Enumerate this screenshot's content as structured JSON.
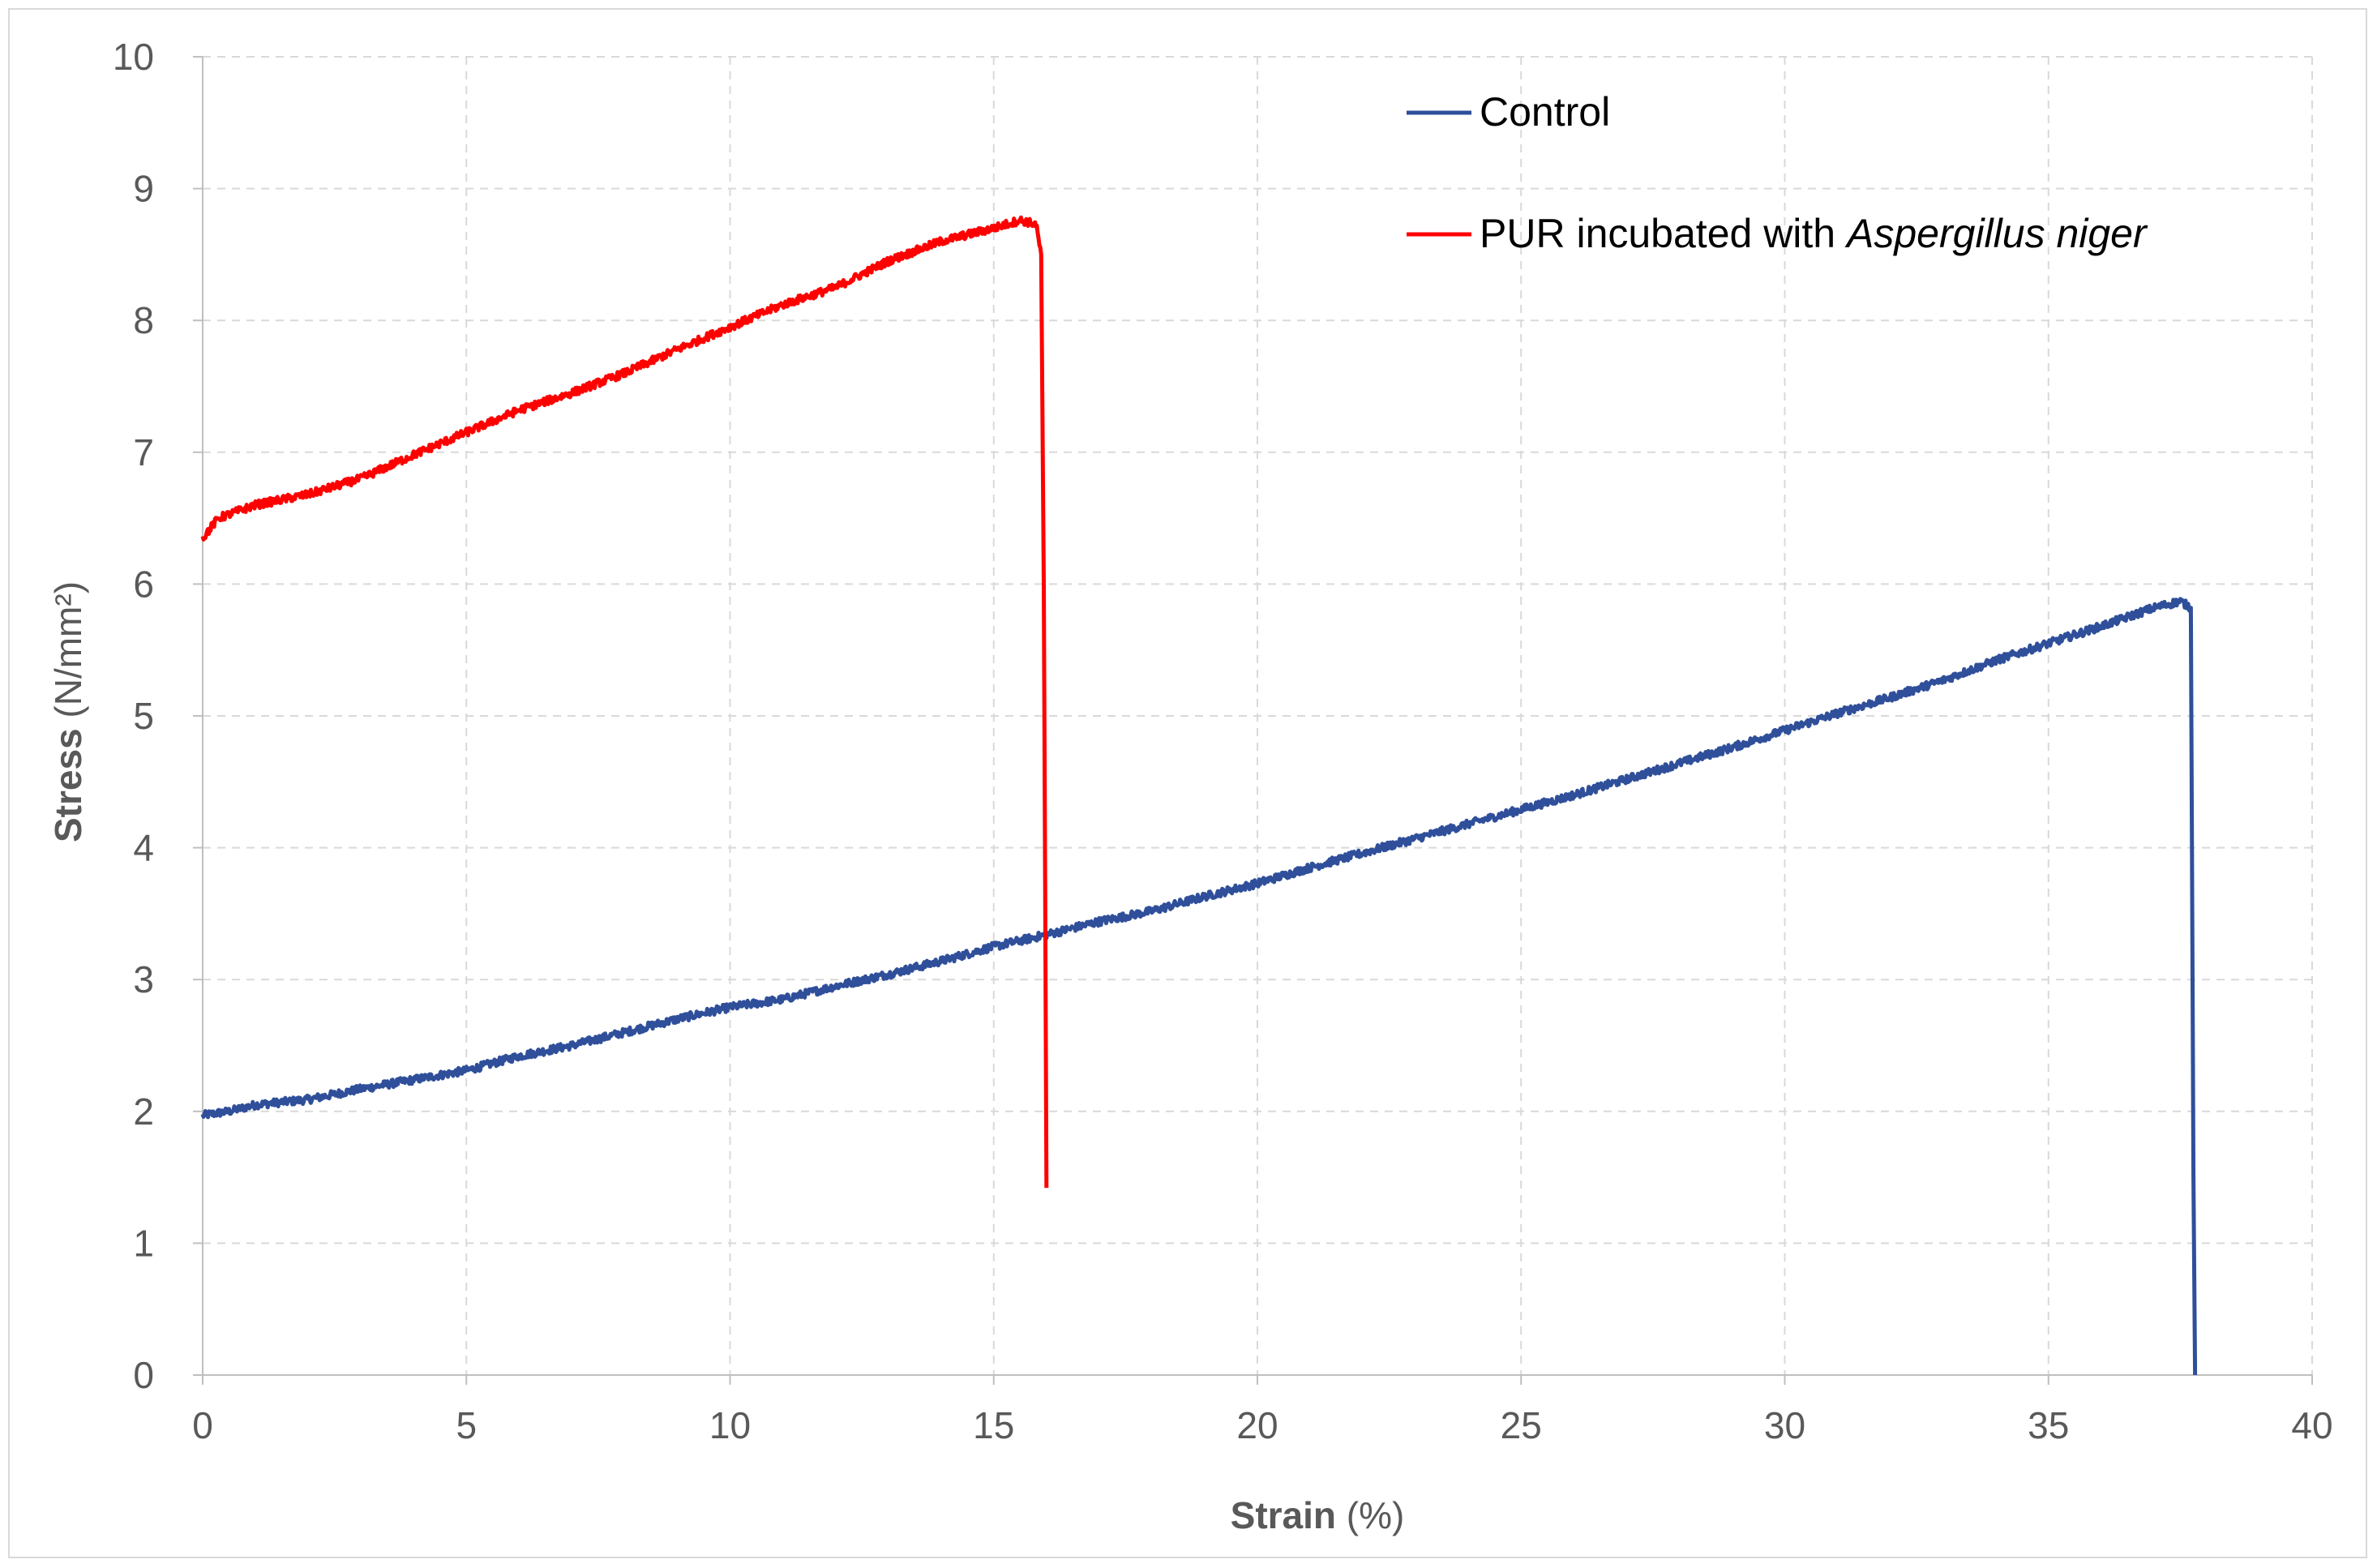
{
  "chart_data": {
    "type": "line",
    "xlabel": {
      "bold": "Strain",
      "rest": " (%)"
    },
    "ylabel": {
      "bold": "Stress",
      "rest": " (N/mm²)"
    },
    "xlim": [
      0,
      40
    ],
    "ylim": [
      0,
      10
    ],
    "xticks": [
      0,
      5,
      10,
      15,
      20,
      25,
      30,
      35,
      40
    ],
    "yticks": [
      0,
      1,
      2,
      3,
      4,
      5,
      6,
      7,
      8,
      9,
      10
    ],
    "grid": true,
    "legend_position": "top-right",
    "series": [
      {
        "name": "Control",
        "name_parts": [
          {
            "text": "Control",
            "italic": false
          }
        ],
        "color": "#2f4f9a",
        "points": [
          [
            0,
            1.97
          ],
          [
            0.5,
            2.0
          ],
          [
            1,
            2.05
          ],
          [
            2,
            2.09
          ],
          [
            3,
            2.17
          ],
          [
            4,
            2.24
          ],
          [
            5,
            2.31
          ],
          [
            6,
            2.42
          ],
          [
            7,
            2.5
          ],
          [
            8,
            2.6
          ],
          [
            9,
            2.7
          ],
          [
            10,
            2.79
          ],
          [
            11,
            2.85
          ],
          [
            12,
            2.95
          ],
          [
            13,
            3.04
          ],
          [
            14,
            3.14
          ],
          [
            15,
            3.25
          ],
          [
            16,
            3.34
          ],
          [
            17,
            3.44
          ],
          [
            18,
            3.52
          ],
          [
            19,
            3.63
          ],
          [
            20,
            3.73
          ],
          [
            21,
            3.85
          ],
          [
            22,
            3.96
          ],
          [
            23,
            4.07
          ],
          [
            24,
            4.18
          ],
          [
            25,
            4.29
          ],
          [
            26,
            4.4
          ],
          [
            27,
            4.52
          ],
          [
            28,
            4.64
          ],
          [
            29,
            4.76
          ],
          [
            30,
            4.89
          ],
          [
            31,
            5.02
          ],
          [
            32,
            5.14
          ],
          [
            33,
            5.27
          ],
          [
            34,
            5.42
          ],
          [
            35,
            5.55
          ],
          [
            36,
            5.68
          ],
          [
            37,
            5.82
          ],
          [
            37.5,
            5.87
          ],
          [
            37.7,
            5.82
          ],
          [
            37.75,
            1.5
          ],
          [
            37.78,
            0.0
          ]
        ]
      },
      {
        "name": "PUR incubated with Aspergillus niger",
        "name_parts": [
          {
            "text": "PUR incubated with ",
            "italic": false
          },
          {
            "text": "Aspergillus niger",
            "italic": true
          }
        ],
        "color": "#ff0000",
        "points": [
          [
            0,
            6.35
          ],
          [
            0.3,
            6.5
          ],
          [
            1,
            6.6
          ],
          [
            2,
            6.68
          ],
          [
            3,
            6.8
          ],
          [
            4,
            6.98
          ],
          [
            5,
            7.15
          ],
          [
            6,
            7.32
          ],
          [
            7,
            7.45
          ],
          [
            8,
            7.6
          ],
          [
            9,
            7.78
          ],
          [
            10,
            7.95
          ],
          [
            11,
            8.12
          ],
          [
            12,
            8.25
          ],
          [
            13,
            8.45
          ],
          [
            14,
            8.6
          ],
          [
            15,
            8.7
          ],
          [
            15.5,
            8.76
          ],
          [
            15.8,
            8.73
          ],
          [
            15.9,
            8.5
          ],
          [
            15.95,
            6.0
          ],
          [
            16.0,
            1.42
          ]
        ]
      }
    ]
  }
}
